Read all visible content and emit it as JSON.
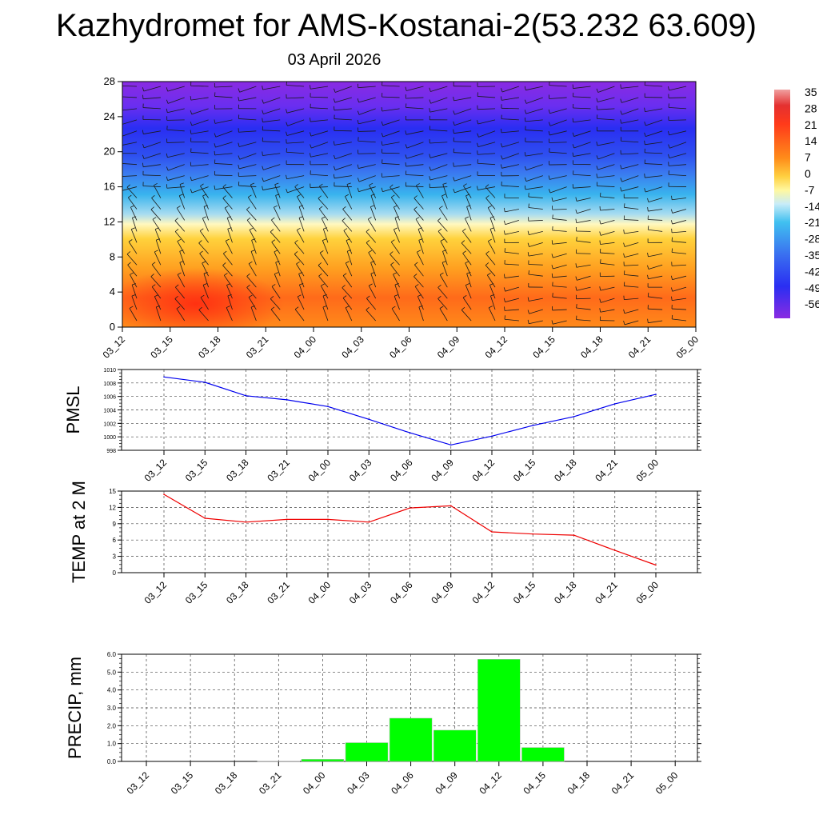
{
  "header": {
    "title": "Kazhydromet for AMS-Kostanai-2(53.232 63.609)",
    "date": "03 April 2026"
  },
  "colors": {
    "pmsl_line": "#0000ee",
    "temp_line": "#ee0000",
    "precip_bar": "#00ff00",
    "grid": "#333333"
  },
  "cross_section": {
    "y_ticks": [
      "0",
      "4",
      "8",
      "12",
      "16",
      "20",
      "24",
      "28"
    ],
    "x_ticks": [
      "03_12",
      "03_15",
      "03_18",
      "03_21",
      "04_00",
      "04_03",
      "04_06",
      "04_09",
      "04_12",
      "04_15",
      "04_18",
      "04_21",
      "05_00"
    ],
    "colorbar_labels": [
      "35",
      "28",
      "21",
      "14",
      "7",
      "0",
      "-7",
      "-14",
      "-21",
      "-28",
      "-35",
      "-42",
      "-49",
      "-56"
    ]
  },
  "chart_data": [
    {
      "type": "line",
      "name": "pmsl",
      "ylabel": "PMSL",
      "x": [
        "03_12",
        "03_15",
        "03_18",
        "03_21",
        "04_00",
        "04_03",
        "04_06",
        "04_09",
        "04_12",
        "04_15",
        "04_18",
        "04_21",
        "05_00"
      ],
      "values": [
        1008.9,
        1008.1,
        1006.1,
        1005.5,
        1004.5,
        1002.6,
        1000.6,
        998.8,
        1000.1,
        1001.7,
        1003.0,
        1004.9,
        1006.3
      ],
      "ylim": [
        998,
        1010
      ],
      "y_ticks": [
        "998",
        "1000",
        "1002",
        "1004",
        "1006",
        "1008",
        "1010"
      ]
    },
    {
      "type": "line",
      "name": "temp_2m",
      "ylabel": "TEMP at 2 M",
      "x": [
        "03_12",
        "03_15",
        "03_18",
        "03_21",
        "04_00",
        "04_03",
        "04_06",
        "04_09",
        "04_12",
        "04_15",
        "04_18",
        "04_21",
        "05_00"
      ],
      "values": [
        14.4,
        10.0,
        9.3,
        9.8,
        9.8,
        9.3,
        11.9,
        12.3,
        7.5,
        7.1,
        6.9,
        4.1,
        1.4
      ],
      "ylim": [
        0,
        15
      ],
      "y_ticks": [
        "0",
        "3",
        "6",
        "9",
        "12",
        "15"
      ]
    },
    {
      "type": "bar",
      "name": "precip",
      "ylabel": "PRECIP, mm",
      "categories": [
        "03_12",
        "03_15",
        "03_18",
        "03_21",
        "04_00",
        "04_03",
        "04_06",
        "04_09",
        "04_12",
        "04_15",
        "04_18",
        "04_21",
        "05_00"
      ],
      "values": [
        0.0,
        0.0,
        0.0,
        0.02,
        0.12,
        1.05,
        2.42,
        1.75,
        5.72,
        0.78,
        0.0,
        0.0,
        0.0
      ],
      "ylim": [
        0,
        6
      ],
      "y_ticks": [
        "0.0",
        "1.0",
        "2.0",
        "3.0",
        "4.0",
        "5.0",
        "6.0"
      ]
    }
  ]
}
